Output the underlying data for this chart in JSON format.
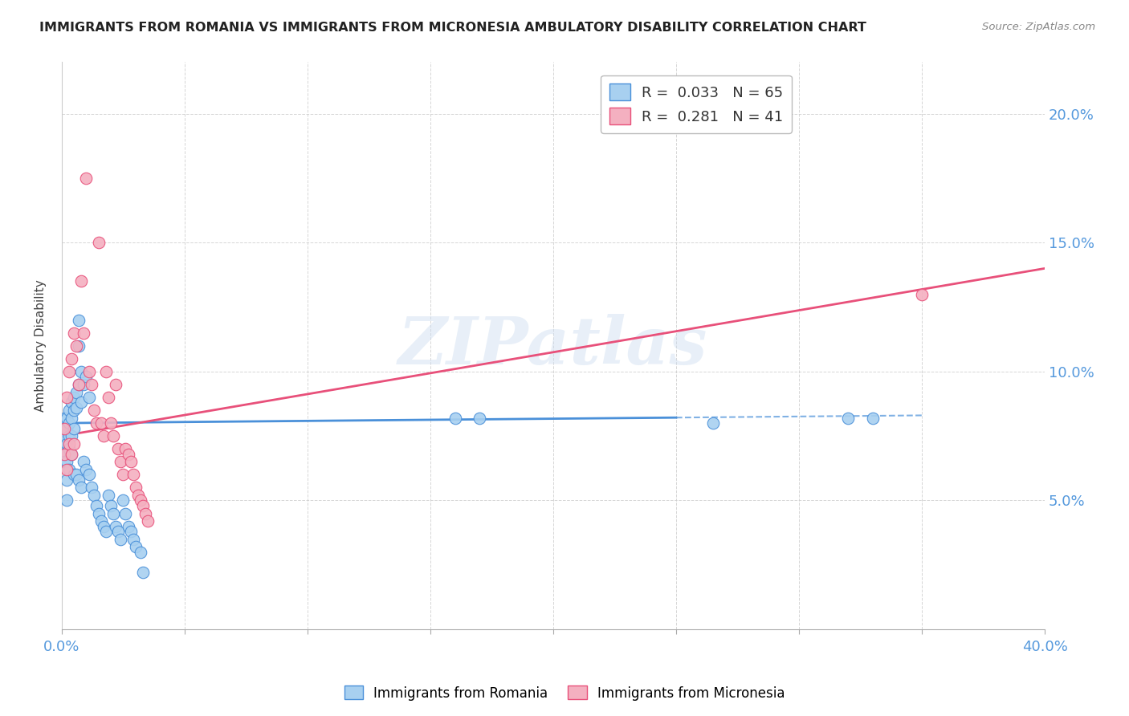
{
  "title": "IMMIGRANTS FROM ROMANIA VS IMMIGRANTS FROM MICRONESIA AMBULATORY DISABILITY CORRELATION CHART",
  "source": "Source: ZipAtlas.com",
  "ylabel": "Ambulatory Disability",
  "xlim": [
    0.0,
    0.4
  ],
  "ylim": [
    0.0,
    0.22
  ],
  "romania_R": 0.033,
  "romania_N": 65,
  "micronesia_R": 0.281,
  "micronesia_N": 41,
  "romania_color": "#a8d0f0",
  "micronesia_color": "#f4b0c0",
  "romania_line_color": "#4a90d9",
  "micronesia_line_color": "#e8507a",
  "watermark": "ZIPatlas",
  "romania_x": [
    0.001,
    0.001,
    0.001,
    0.001,
    0.002,
    0.002,
    0.002,
    0.002,
    0.002,
    0.002,
    0.003,
    0.003,
    0.003,
    0.003,
    0.003,
    0.004,
    0.004,
    0.004,
    0.004,
    0.005,
    0.005,
    0.005,
    0.005,
    0.006,
    0.006,
    0.006,
    0.007,
    0.007,
    0.007,
    0.007,
    0.008,
    0.008,
    0.008,
    0.009,
    0.009,
    0.01,
    0.01,
    0.011,
    0.011,
    0.012,
    0.013,
    0.014,
    0.015,
    0.016,
    0.017,
    0.018,
    0.019,
    0.02,
    0.021,
    0.022,
    0.023,
    0.024,
    0.025,
    0.026,
    0.027,
    0.028,
    0.029,
    0.03,
    0.032,
    0.033,
    0.16,
    0.17,
    0.265,
    0.32,
    0.33
  ],
  "romania_y": [
    0.082,
    0.075,
    0.068,
    0.065,
    0.082,
    0.078,
    0.072,
    0.065,
    0.058,
    0.05,
    0.085,
    0.08,
    0.075,
    0.07,
    0.062,
    0.088,
    0.082,
    0.075,
    0.068,
    0.09,
    0.085,
    0.078,
    0.06,
    0.092,
    0.086,
    0.06,
    0.12,
    0.11,
    0.095,
    0.058,
    0.1,
    0.088,
    0.055,
    0.095,
    0.065,
    0.098,
    0.062,
    0.09,
    0.06,
    0.055,
    0.052,
    0.048,
    0.045,
    0.042,
    0.04,
    0.038,
    0.052,
    0.048,
    0.045,
    0.04,
    0.038,
    0.035,
    0.05,
    0.045,
    0.04,
    0.038,
    0.035,
    0.032,
    0.03,
    0.022,
    0.082,
    0.082,
    0.08,
    0.082,
    0.082
  ],
  "micronesia_x": [
    0.001,
    0.001,
    0.002,
    0.002,
    0.003,
    0.003,
    0.004,
    0.004,
    0.005,
    0.005,
    0.006,
    0.007,
    0.008,
    0.009,
    0.01,
    0.011,
    0.012,
    0.013,
    0.014,
    0.015,
    0.016,
    0.017,
    0.018,
    0.019,
    0.02,
    0.021,
    0.022,
    0.023,
    0.024,
    0.025,
    0.026,
    0.027,
    0.028,
    0.029,
    0.03,
    0.031,
    0.032,
    0.033,
    0.034,
    0.035,
    0.35
  ],
  "micronesia_y": [
    0.078,
    0.068,
    0.09,
    0.062,
    0.1,
    0.072,
    0.105,
    0.068,
    0.115,
    0.072,
    0.11,
    0.095,
    0.135,
    0.115,
    0.175,
    0.1,
    0.095,
    0.085,
    0.08,
    0.15,
    0.08,
    0.075,
    0.1,
    0.09,
    0.08,
    0.075,
    0.095,
    0.07,
    0.065,
    0.06,
    0.07,
    0.068,
    0.065,
    0.06,
    0.055,
    0.052,
    0.05,
    0.048,
    0.045,
    0.042,
    0.13
  ],
  "rom_trend_x0": 0.0,
  "rom_trend_y0": 0.08,
  "rom_trend_x1": 0.35,
  "rom_trend_y1": 0.083,
  "mic_trend_x0": 0.0,
  "mic_trend_y0": 0.075,
  "mic_trend_x1": 0.4,
  "mic_trend_y1": 0.14
}
